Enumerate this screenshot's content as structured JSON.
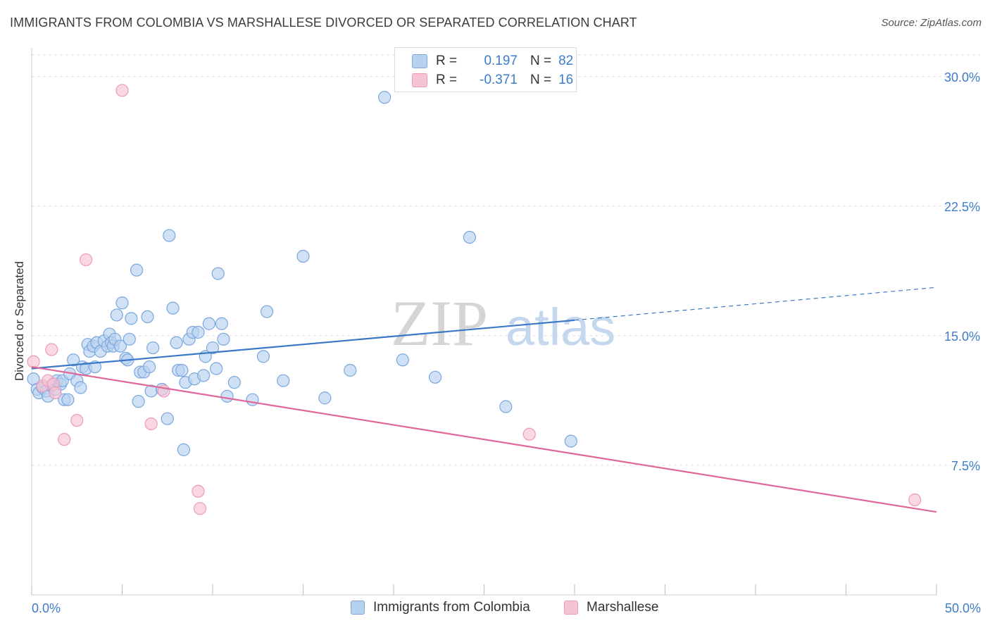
{
  "title": "IMMIGRANTS FROM COLOMBIA VS MARSHALLESE DIVORCED OR SEPARATED CORRELATION CHART",
  "source": "Source: ZipAtlas.com",
  "watermark": {
    "zip": "ZIP",
    "atlas": "atlas"
  },
  "legend": {
    "rows": [
      {
        "r_label": "R =",
        "r_value": "0.197",
        "n_label": "N =",
        "n_value": "82"
      },
      {
        "r_label": "R =",
        "r_value": "-0.371",
        "n_label": "N =",
        "n_value": "16"
      }
    ]
  },
  "bottom_legend": [
    "Immigrants from Colombia",
    "Marshallese"
  ],
  "colors": {
    "blue": "#3b78c6",
    "blue_fill": "#b9d1f0",
    "blue_stroke": "#7aa7de",
    "pink": "#e0679a",
    "pink_fill": "#f6c3d4",
    "pink_stroke": "#ec9ab8",
    "tick_text": "#3d7cc9",
    "grid": "#dddddd"
  },
  "chart_data": {
    "type": "scatter",
    "title": "IMMIGRANTS FROM COLOMBIA VS MARSHALLESE DIVORCED OR SEPARATED CORRELATION CHART",
    "xlabel": "",
    "ylabel": "Divorced or Separated",
    "xlim": [
      0,
      50
    ],
    "ylim": [
      0,
      31.5
    ],
    "x_ticks_labeled": [
      "0.0%",
      "50.0%"
    ],
    "y_ticks": [
      7.5,
      15.0,
      22.5,
      30.0
    ],
    "y_tick_labels": [
      "7.5%",
      "15.0%",
      "22.5%",
      "30.0%"
    ],
    "grid": "horizontal dashed",
    "legend_placement": "top-center",
    "series": [
      {
        "name": "Immigrants from Colombia",
        "color": "#3b78c6",
        "trend": {
          "x": [
            0,
            30
          ],
          "y": [
            13.1,
            15.9
          ],
          "dashed_extension": {
            "x": [
              30,
              50
            ],
            "y": [
              15.9,
              17.8
            ]
          }
        },
        "points": [
          [
            0.1,
            12.5
          ],
          [
            0.3,
            11.9
          ],
          [
            0.4,
            11.7
          ],
          [
            0.6,
            12.0
          ],
          [
            0.8,
            11.8
          ],
          [
            0.9,
            11.5
          ],
          [
            1.1,
            12.1
          ],
          [
            1.3,
            11.9
          ],
          [
            1.4,
            12.4
          ],
          [
            1.6,
            12.2
          ],
          [
            1.7,
            12.4
          ],
          [
            1.8,
            11.3
          ],
          [
            2.0,
            11.3
          ],
          [
            2.1,
            12.8
          ],
          [
            2.3,
            13.6
          ],
          [
            2.5,
            12.4
          ],
          [
            2.7,
            12.0
          ],
          [
            2.8,
            13.2
          ],
          [
            3.0,
            13.1
          ],
          [
            3.1,
            14.5
          ],
          [
            3.2,
            14.1
          ],
          [
            3.4,
            14.4
          ],
          [
            3.5,
            13.2
          ],
          [
            3.6,
            14.6
          ],
          [
            3.8,
            14.1
          ],
          [
            4.0,
            14.7
          ],
          [
            4.2,
            14.4
          ],
          [
            4.3,
            15.1
          ],
          [
            4.4,
            14.6
          ],
          [
            4.5,
            14.4
          ],
          [
            4.6,
            14.8
          ],
          [
            4.7,
            16.2
          ],
          [
            4.9,
            14.4
          ],
          [
            5.0,
            16.9
          ],
          [
            5.2,
            13.7
          ],
          [
            5.3,
            13.6
          ],
          [
            5.4,
            14.8
          ],
          [
            5.5,
            16.0
          ],
          [
            5.8,
            18.8
          ],
          [
            5.9,
            11.2
          ],
          [
            6.0,
            12.9
          ],
          [
            6.2,
            12.9
          ],
          [
            6.4,
            16.1
          ],
          [
            6.5,
            13.2
          ],
          [
            6.6,
            11.8
          ],
          [
            6.7,
            14.3
          ],
          [
            7.2,
            11.9
          ],
          [
            7.5,
            10.2
          ],
          [
            7.6,
            20.8
          ],
          [
            7.8,
            16.6
          ],
          [
            8.0,
            14.6
          ],
          [
            8.1,
            13.0
          ],
          [
            8.3,
            13.0
          ],
          [
            8.4,
            8.4
          ],
          [
            8.5,
            12.3
          ],
          [
            8.7,
            14.8
          ],
          [
            8.9,
            15.2
          ],
          [
            9.0,
            12.5
          ],
          [
            9.2,
            15.2
          ],
          [
            9.5,
            12.7
          ],
          [
            9.6,
            13.8
          ],
          [
            9.8,
            15.7
          ],
          [
            10.0,
            14.3
          ],
          [
            10.2,
            13.1
          ],
          [
            10.3,
            18.6
          ],
          [
            10.5,
            15.7
          ],
          [
            10.6,
            14.8
          ],
          [
            10.8,
            11.5
          ],
          [
            11.2,
            12.3
          ],
          [
            12.2,
            11.3
          ],
          [
            12.8,
            13.8
          ],
          [
            13.0,
            16.4
          ],
          [
            13.9,
            12.4
          ],
          [
            15.0,
            19.6
          ],
          [
            16.2,
            11.4
          ],
          [
            17.6,
            13.0
          ],
          [
            19.5,
            28.8
          ],
          [
            20.5,
            13.6
          ],
          [
            22.3,
            12.6
          ],
          [
            24.2,
            20.7
          ],
          [
            26.2,
            10.9
          ],
          [
            29.8,
            8.9
          ]
        ]
      },
      {
        "name": "Marshallese",
        "color": "#e0679a",
        "trend": {
          "x": [
            0,
            50
          ],
          "y": [
            13.2,
            4.8
          ]
        },
        "points": [
          [
            0.1,
            13.5
          ],
          [
            0.6,
            12.1
          ],
          [
            0.9,
            12.4
          ],
          [
            1.1,
            14.2
          ],
          [
            1.2,
            12.2
          ],
          [
            1.3,
            11.7
          ],
          [
            1.8,
            9.0
          ],
          [
            2.5,
            10.1
          ],
          [
            3.0,
            19.4
          ],
          [
            5.0,
            29.2
          ],
          [
            6.6,
            9.9
          ],
          [
            7.3,
            11.8
          ],
          [
            9.2,
            6.0
          ],
          [
            9.3,
            5.0
          ],
          [
            27.5,
            9.3
          ],
          [
            48.8,
            5.5
          ]
        ]
      }
    ]
  }
}
